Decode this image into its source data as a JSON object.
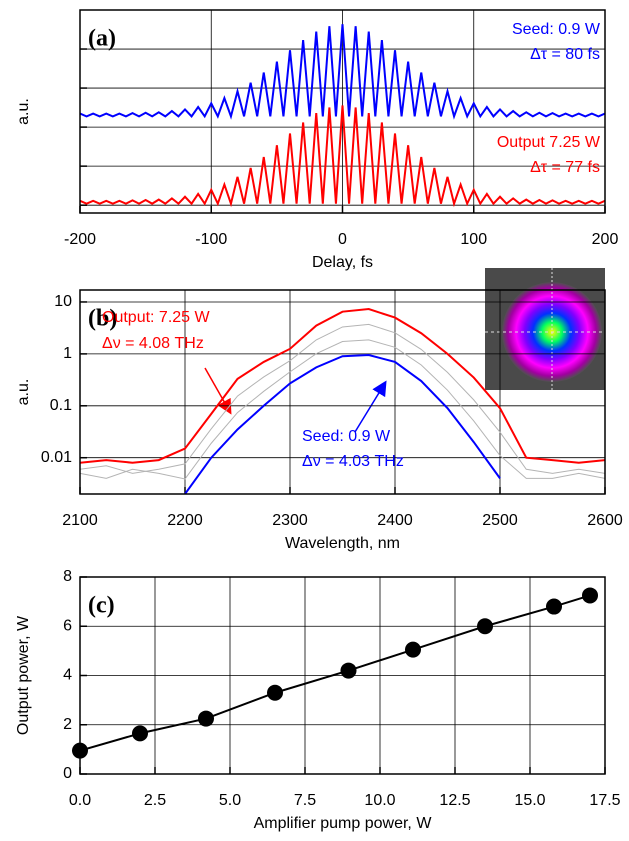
{
  "chart_data": [
    {
      "type": "line",
      "panel_label": "(a)",
      "x_label": "Delay, fs",
      "y_label": "a.u.",
      "x": [
        -200,
        -195,
        -190,
        -185,
        -180,
        -175,
        -170,
        -165,
        -160,
        -155,
        -150,
        -145,
        -140,
        -135,
        -130,
        -125,
        -120,
        -115,
        -110,
        -105,
        -100,
        -95,
        -90,
        -85,
        -80,
        -75,
        -70,
        -65,
        -60,
        -55,
        -50,
        -45,
        -40,
        -35,
        -30,
        -25,
        -20,
        -15,
        -10,
        -5,
        0,
        5,
        10,
        15,
        20,
        25,
        30,
        35,
        40,
        45,
        50,
        55,
        60,
        65,
        70,
        75,
        80,
        85,
        90,
        95,
        100,
        105,
        110,
        115,
        120,
        125,
        130,
        135,
        140,
        145,
        150,
        155,
        160,
        165,
        170,
        175,
        180,
        185,
        190,
        195,
        200
      ],
      "xlim": [
        -200,
        200
      ],
      "xticks": [
        -200,
        -100,
        0,
        100,
        200
      ],
      "ylim": [
        0,
        5
      ],
      "grid": true,
      "series": [
        {
          "name": "Seed: 0.9 W",
          "detail": "Δτ = 80 fs",
          "color": "#0000ff",
          "values": [
            2.45,
            2.38,
            2.45,
            2.38,
            2.45,
            2.38,
            2.45,
            2.38,
            2.46,
            2.38,
            2.47,
            2.38,
            2.48,
            2.38,
            2.51,
            2.38,
            2.55,
            2.38,
            2.61,
            2.38,
            2.7,
            2.38,
            2.83,
            2.38,
            3.0,
            2.38,
            3.21,
            2.38,
            3.46,
            2.38,
            3.73,
            2.38,
            4.01,
            2.38,
            4.26,
            2.38,
            4.47,
            2.38,
            4.6,
            2.38,
            4.65,
            2.38,
            4.6,
            2.38,
            4.47,
            2.38,
            4.26,
            2.38,
            4.01,
            2.38,
            3.73,
            2.38,
            3.46,
            2.38,
            3.21,
            2.38,
            3.0,
            2.38,
            2.83,
            2.38,
            2.7,
            2.38,
            2.61,
            2.38,
            2.55,
            2.38,
            2.51,
            2.38,
            2.48,
            2.38,
            2.47,
            2.38,
            2.46,
            2.38,
            2.45,
            2.38,
            2.45,
            2.38,
            2.45,
            2.38,
            2.45
          ]
        },
        {
          "name": "Output 7.25 W",
          "detail": "Δτ = 77 fs",
          "color": "#ff0000",
          "values": [
            0.3,
            0.23,
            0.3,
            0.23,
            0.3,
            0.23,
            0.3,
            0.23,
            0.31,
            0.23,
            0.32,
            0.23,
            0.33,
            0.23,
            0.36,
            0.23,
            0.4,
            0.23,
            0.47,
            0.23,
            0.57,
            0.23,
            0.7,
            0.23,
            0.89,
            0.23,
            1.11,
            0.23,
            1.38,
            0.23,
            1.67,
            0.23,
            1.96,
            0.23,
            2.23,
            0.23,
            2.46,
            0.23,
            2.6,
            0.23,
            2.65,
            0.23,
            2.6,
            0.23,
            2.46,
            0.23,
            2.23,
            0.23,
            1.96,
            0.23,
            1.67,
            0.23,
            1.38,
            0.23,
            1.11,
            0.23,
            0.89,
            0.23,
            0.7,
            0.23,
            0.57,
            0.23,
            0.47,
            0.23,
            0.4,
            0.23,
            0.36,
            0.23,
            0.33,
            0.23,
            0.32,
            0.23,
            0.31,
            0.23,
            0.3,
            0.23,
            0.3,
            0.23,
            0.3,
            0.23,
            0.3
          ]
        }
      ]
    },
    {
      "type": "line",
      "panel_label": "(b)",
      "x_label": "Wavelength, nm",
      "y_label": "a.u.",
      "log_y": true,
      "x": [
        2100,
        2125,
        2150,
        2175,
        2200,
        2225,
        2250,
        2275,
        2300,
        2325,
        2350,
        2375,
        2400,
        2425,
        2450,
        2475,
        2500,
        2525,
        2550,
        2575,
        2600
      ],
      "xlim": [
        2100,
        2600
      ],
      "xticks": [
        2100,
        2200,
        2300,
        2400,
        2500,
        2600
      ],
      "ylim": [
        0.002,
        17
      ],
      "yticks": [
        0.01,
        0.1,
        1,
        10
      ],
      "grid": true,
      "background_series": [
        {
          "color": "#b4b4b4",
          "values": [
            0.005,
            0.004,
            0.006,
            0.005,
            0.0039,
            0.019,
            0.074,
            0.19,
            0.45,
            1.01,
            1.73,
            1.86,
            1.34,
            0.61,
            0.2,
            0.051,
            0.011,
            0.004,
            0.004,
            0.005,
            0.004
          ]
        },
        {
          "color": "#b4b4b4",
          "values": [
            0.006,
            0.007,
            0.005,
            0.006,
            0.0076,
            0.036,
            0.154,
            0.36,
            0.74,
            1.86,
            3.3,
            3.7,
            2.55,
            1.22,
            0.44,
            0.13,
            0.031,
            0.006,
            0.005,
            0.006,
            0.005
          ]
        }
      ],
      "series": [
        {
          "name": "Output: 7.25 W",
          "detail": "Δν = 4.08 THz",
          "color": "#ff0000",
          "values": [
            0.008,
            0.009,
            0.008,
            0.009,
            0.015,
            0.07,
            0.33,
            0.7,
            1.25,
            3.5,
            6.5,
            7.3,
            5.0,
            2.5,
            1.0,
            0.35,
            0.09,
            0.01,
            0.009,
            0.008,
            0.009
          ]
        },
        {
          "name": "Seed: 0.9 W",
          "detail": "Δν = 4.03 THz",
          "color": "#0000ff",
          "values": [
            null,
            null,
            null,
            null,
            0.002,
            0.01,
            0.035,
            0.1,
            0.27,
            0.55,
            0.9,
            0.95,
            0.7,
            0.3,
            0.09,
            0.02,
            0.004,
            null,
            null,
            null,
            null
          ]
        }
      ]
    },
    {
      "type": "scatter",
      "panel_label": "(c)",
      "x_label": "Amplifier pump power, W",
      "y_label": "Output power, W",
      "x": [
        0,
        2,
        4.2,
        6.5,
        8.95,
        11.1,
        13.5,
        15.8,
        17
      ],
      "values": [
        0.95,
        1.65,
        2.25,
        3.3,
        4.2,
        5.05,
        6.0,
        6.8,
        7.25
      ],
      "color": "#000000",
      "xlim": [
        0,
        17.5
      ],
      "xticks": [
        {
          "value": 0,
          "label": "0.0"
        },
        2.5,
        {
          "value": 5,
          "label": "5.0"
        },
        7.5,
        {
          "value": 10,
          "label": "10.0"
        },
        12.5,
        {
          "value": 15,
          "label": "15.0"
        },
        17.5
      ],
      "ylim": [
        0,
        8
      ],
      "yticks": [
        0,
        2,
        4,
        6,
        8
      ],
      "grid": true
    }
  ]
}
